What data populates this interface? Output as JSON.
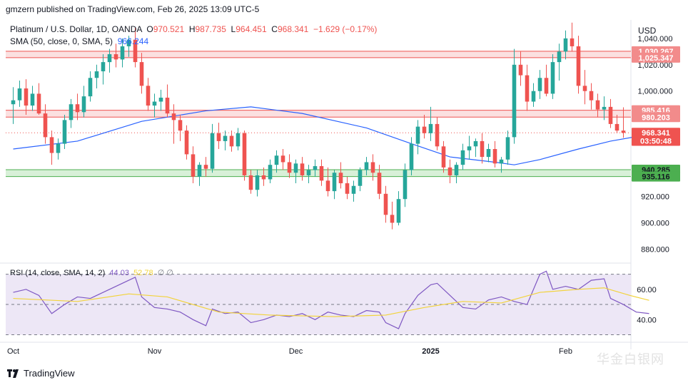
{
  "header": {
    "publisher": "gmzern published on TradingView.com, Feb 26, 2025 13:09 UTC-5",
    "symbol": "Platinum / U.S. Dollar, 1D, OANDA",
    "o_label": "O",
    "o_value": "970.521",
    "h_label": "H",
    "h_value": "987.735",
    "l_label": "L",
    "l_value": "964.451",
    "c_label": "C",
    "c_value": "968.341",
    "change": "−1.629 (−0.17%)",
    "sma_label": "SMA (50, close, 0, SMA, 5)",
    "sma_value": "966.244",
    "rsi_label": "RSI (14, close, SMA, 14, 2)",
    "rsi_value": "44.03",
    "rsi_sma_value": "52.78",
    "rsi_extra": "∅ ∅"
  },
  "price_axis": {
    "currency": "USD",
    "ticks": [
      "1,040.000",
      "1,020.000",
      "1,000.000",
      "920.000",
      "900.000",
      "880.000"
    ],
    "tick_values": [
      1040,
      1020,
      1000,
      920,
      900,
      880
    ],
    "tags": [
      {
        "label": "1,030.267",
        "value": 1030.267,
        "color": "#f28b8b"
      },
      {
        "label": "1,025.347",
        "value": 1025.347,
        "color": "#f28b8b"
      },
      {
        "label": "985.416",
        "value": 985.416,
        "color": "#f28b8b"
      },
      {
        "label": "980.203",
        "value": 980.203,
        "color": "#f28b8b"
      },
      {
        "label": "968.341",
        "value": 968.341,
        "color": "#ef5350"
      },
      {
        "label": "03:50:48",
        "value": 962.2,
        "color": "#ef5350"
      },
      {
        "label": "940.285",
        "value": 940.285,
        "color": "#4caf50"
      },
      {
        "label": "935.116",
        "value": 935.116,
        "color": "#4caf50"
      }
    ]
  },
  "rsi_axis": {
    "ticks": [
      "60.00",
      "40.00"
    ],
    "tick_values": [
      60,
      40
    ]
  },
  "time_axis": {
    "labels": [
      "Oct",
      "Nov",
      "Dec",
      "2025",
      "Feb"
    ],
    "label_index": [
      0,
      22,
      44,
      65,
      86
    ]
  },
  "footer": {
    "brand": "TradingView",
    "watermark": "华金白银网"
  },
  "colors": {
    "up": "#26a69a",
    "down": "#ef5350",
    "sma": "#2962ff",
    "rsi": "#7e57c2",
    "rsi_sma": "#f2d33a",
    "resistance_fill": "#fbe0e0",
    "resistance_line": "#ef5350",
    "support_fill": "#d8f0d8",
    "support_line": "#4caf50",
    "rsi_band": "#ede7f6"
  },
  "chart_data": [
    {
      "type": "candlestick",
      "title": "Platinum / U.S. Dollar, 1D, OANDA",
      "ylabel": "USD",
      "ylim": [
        871,
        1054
      ],
      "zones": [
        {
          "name": "resistance",
          "low": 1025.347,
          "high": 1030.267
        },
        {
          "name": "resistance",
          "low": 980.203,
          "high": 985.416
        },
        {
          "name": "support",
          "low": 935.116,
          "high": 940.285
        }
      ],
      "last_price": 968.341,
      "candles": [
        [
          990,
          1003,
          975,
          993
        ],
        [
          993,
          1008,
          988,
          1002
        ],
        [
          1002,
          1009,
          982,
          989
        ],
        [
          989,
          1004,
          985,
          998
        ],
        [
          998,
          1006,
          982,
          983
        ],
        [
          983,
          990,
          960,
          965
        ],
        [
          965,
          970,
          944,
          953
        ],
        [
          953,
          964,
          948,
          960
        ],
        [
          960,
          982,
          956,
          978
        ],
        [
          978,
          994,
          972,
          990
        ],
        [
          990,
          998,
          978,
          984
        ],
        [
          984,
          1004,
          980,
          996
        ],
        [
          996,
          1015,
          992,
          1010
        ],
        [
          1010,
          1020,
          1002,
          1015
        ],
        [
          1015,
          1028,
          1005,
          1022
        ],
        [
          1022,
          1032,
          1014,
          1028
        ],
        [
          1028,
          1036,
          1018,
          1024
        ],
        [
          1024,
          1040,
          1018,
          1034
        ],
        [
          1034,
          1042,
          1026,
          1039
        ],
        [
          1039,
          1048,
          1018,
          1022
        ],
        [
          1022,
          1029,
          998,
          1004
        ],
        [
          1004,
          1010,
          985,
          989
        ],
        [
          989,
          998,
          980,
          992
        ],
        [
          992,
          1001,
          985,
          995
        ],
        [
          995,
          1005,
          980,
          983
        ],
        [
          983,
          990,
          960,
          978
        ],
        [
          978,
          982,
          962,
          970
        ],
        [
          970,
          974,
          948,
          952
        ],
        [
          952,
          958,
          930,
          935
        ],
        [
          935,
          946,
          928,
          944
        ],
        [
          944,
          950,
          935,
          941
        ],
        [
          941,
          975,
          938,
          968
        ],
        [
          968,
          976,
          956,
          962
        ],
        [
          962,
          970,
          955,
          966
        ],
        [
          966,
          970,
          954,
          958
        ],
        [
          958,
          972,
          955,
          968
        ],
        [
          968,
          970,
          932,
          936
        ],
        [
          936,
          940,
          922,
          925
        ],
        [
          925,
          940,
          920,
          936
        ],
        [
          936,
          942,
          928,
          933
        ],
        [
          933,
          948,
          930,
          944
        ],
        [
          944,
          955,
          938,
          951
        ],
        [
          951,
          956,
          940,
          946
        ],
        [
          946,
          952,
          934,
          938
        ],
        [
          938,
          948,
          930,
          945
        ],
        [
          945,
          950,
          932,
          936
        ],
        [
          936,
          944,
          930,
          940
        ],
        [
          940,
          948,
          935,
          943
        ],
        [
          943,
          948,
          928,
          932
        ],
        [
          932,
          942,
          920,
          924
        ],
        [
          924,
          940,
          918,
          938
        ],
        [
          938,
          946,
          926,
          930
        ],
        [
          930,
          935,
          918,
          922
        ],
        [
          922,
          932,
          916,
          928
        ],
        [
          928,
          942,
          924,
          940
        ],
        [
          940,
          950,
          936,
          946
        ],
        [
          946,
          952,
          932,
          938
        ],
        [
          938,
          944,
          918,
          922
        ],
        [
          922,
          928,
          900,
          906
        ],
        [
          906,
          916,
          895,
          900
        ],
        [
          900,
          924,
          898,
          918
        ],
        [
          918,
          945,
          912,
          940
        ],
        [
          940,
          965,
          936,
          960
        ],
        [
          960,
          978,
          952,
          973
        ],
        [
          973,
          982,
          964,
          968
        ],
        [
          968,
          988,
          962,
          975
        ],
        [
          975,
          980,
          955,
          958
        ],
        [
          958,
          962,
          938,
          942
        ],
        [
          942,
          948,
          930,
          936
        ],
        [
          936,
          946,
          930,
          944
        ],
        [
          944,
          960,
          940,
          955
        ],
        [
          955,
          966,
          948,
          958
        ],
        [
          958,
          964,
          950,
          962
        ],
        [
          962,
          968,
          945,
          950
        ],
        [
          950,
          960,
          946,
          956
        ],
        [
          956,
          962,
          942,
          945
        ],
        [
          945,
          950,
          938,
          948
        ],
        [
          948,
          970,
          944,
          965
        ],
        [
          965,
          1032,
          960,
          1020
        ],
        [
          1020,
          1030,
          1004,
          1012
        ],
        [
          1012,
          1020,
          985,
          992
        ],
        [
          992,
          1006,
          988,
          1000
        ],
        [
          1000,
          1016,
          994,
          1010
        ],
        [
          1010,
          1020,
          996,
          998
        ],
        [
          998,
          1028,
          994,
          1022
        ],
        [
          1022,
          1036,
          1008,
          1030
        ],
        [
          1030,
          1046,
          1024,
          1040
        ],
        [
          1040,
          1052,
          1030,
          1034
        ],
        [
          1034,
          1042,
          998,
          1004
        ],
        [
          1004,
          1016,
          990,
          1000
        ],
        [
          1000,
          1006,
          986,
          993
        ],
        [
          993,
          998,
          980,
          986
        ],
        [
          986,
          996,
          978,
          988
        ],
        [
          988,
          994,
          972,
          975
        ],
        [
          975,
          982,
          968,
          970
        ],
        [
          970,
          987.7,
          964.5,
          968.3
        ]
      ],
      "sma": [
        {
          "x": 0,
          "y": 956
        },
        {
          "x": 10,
          "y": 962
        },
        {
          "x": 20,
          "y": 977
        },
        {
          "x": 30,
          "y": 985
        },
        {
          "x": 37,
          "y": 988
        },
        {
          "x": 45,
          "y": 983
        },
        {
          "x": 55,
          "y": 972
        },
        {
          "x": 62,
          "y": 960
        },
        {
          "x": 68,
          "y": 950
        },
        {
          "x": 75,
          "y": 946
        },
        {
          "x": 78,
          "y": 944
        },
        {
          "x": 82,
          "y": 948
        },
        {
          "x": 88,
          "y": 956
        },
        {
          "x": 93,
          "y": 962
        },
        {
          "x": 98,
          "y": 966.244
        }
      ]
    },
    {
      "type": "line",
      "title": "RSI (14, close, SMA, 14, 2)",
      "ylim": [
        26,
        75
      ],
      "bands": [
        30,
        50,
        70
      ],
      "series": [
        {
          "name": "RSI",
          "color": "#7e57c2",
          "values": [
            {
              "x": 0,
              "y": 58
            },
            {
              "x": 2,
              "y": 60
            },
            {
              "x": 4,
              "y": 56
            },
            {
              "x": 6,
              "y": 44
            },
            {
              "x": 8,
              "y": 50
            },
            {
              "x": 10,
              "y": 55
            },
            {
              "x": 12,
              "y": 54
            },
            {
              "x": 14,
              "y": 58
            },
            {
              "x": 16,
              "y": 62
            },
            {
              "x": 18,
              "y": 66
            },
            {
              "x": 19,
              "y": 68
            },
            {
              "x": 20,
              "y": 55
            },
            {
              "x": 22,
              "y": 48
            },
            {
              "x": 24,
              "y": 47
            },
            {
              "x": 26,
              "y": 45
            },
            {
              "x": 28,
              "y": 40
            },
            {
              "x": 30,
              "y": 36
            },
            {
              "x": 31,
              "y": 47
            },
            {
              "x": 33,
              "y": 44
            },
            {
              "x": 35,
              "y": 45
            },
            {
              "x": 37,
              "y": 38
            },
            {
              "x": 39,
              "y": 40
            },
            {
              "x": 41,
              "y": 43
            },
            {
              "x": 43,
              "y": 42
            },
            {
              "x": 45,
              "y": 44
            },
            {
              "x": 47,
              "y": 40
            },
            {
              "x": 49,
              "y": 45
            },
            {
              "x": 51,
              "y": 43
            },
            {
              "x": 53,
              "y": 42
            },
            {
              "x": 55,
              "y": 46
            },
            {
              "x": 57,
              "y": 45
            },
            {
              "x": 58,
              "y": 38
            },
            {
              "x": 60,
              "y": 34
            },
            {
              "x": 61,
              "y": 44
            },
            {
              "x": 63,
              "y": 56
            },
            {
              "x": 65,
              "y": 63
            },
            {
              "x": 66,
              "y": 64
            },
            {
              "x": 68,
              "y": 56
            },
            {
              "x": 70,
              "y": 48
            },
            {
              "x": 72,
              "y": 47
            },
            {
              "x": 74,
              "y": 53
            },
            {
              "x": 76,
              "y": 55
            },
            {
              "x": 78,
              "y": 52
            },
            {
              "x": 80,
              "y": 50
            },
            {
              "x": 82,
              "y": 70
            },
            {
              "x": 83,
              "y": 72
            },
            {
              "x": 84,
              "y": 60
            },
            {
              "x": 86,
              "y": 62
            },
            {
              "x": 88,
              "y": 60
            },
            {
              "x": 90,
              "y": 66
            },
            {
              "x": 92,
              "y": 67
            },
            {
              "x": 93,
              "y": 54
            },
            {
              "x": 95,
              "y": 50
            },
            {
              "x": 97,
              "y": 45
            },
            {
              "x": 99,
              "y": 44.03
            }
          ]
        },
        {
          "name": "RSI SMA",
          "color": "#f2d33a",
          "values": [
            {
              "x": 0,
              "y": 54
            },
            {
              "x": 10,
              "y": 52
            },
            {
              "x": 18,
              "y": 57
            },
            {
              "x": 24,
              "y": 55
            },
            {
              "x": 32,
              "y": 45
            },
            {
              "x": 40,
              "y": 43
            },
            {
              "x": 50,
              "y": 42
            },
            {
              "x": 58,
              "y": 43
            },
            {
              "x": 64,
              "y": 48
            },
            {
              "x": 70,
              "y": 52
            },
            {
              "x": 76,
              "y": 51
            },
            {
              "x": 82,
              "y": 58
            },
            {
              "x": 88,
              "y": 60
            },
            {
              "x": 92,
              "y": 61
            },
            {
              "x": 96,
              "y": 56
            },
            {
              "x": 99,
              "y": 52.78
            }
          ]
        }
      ]
    }
  ]
}
